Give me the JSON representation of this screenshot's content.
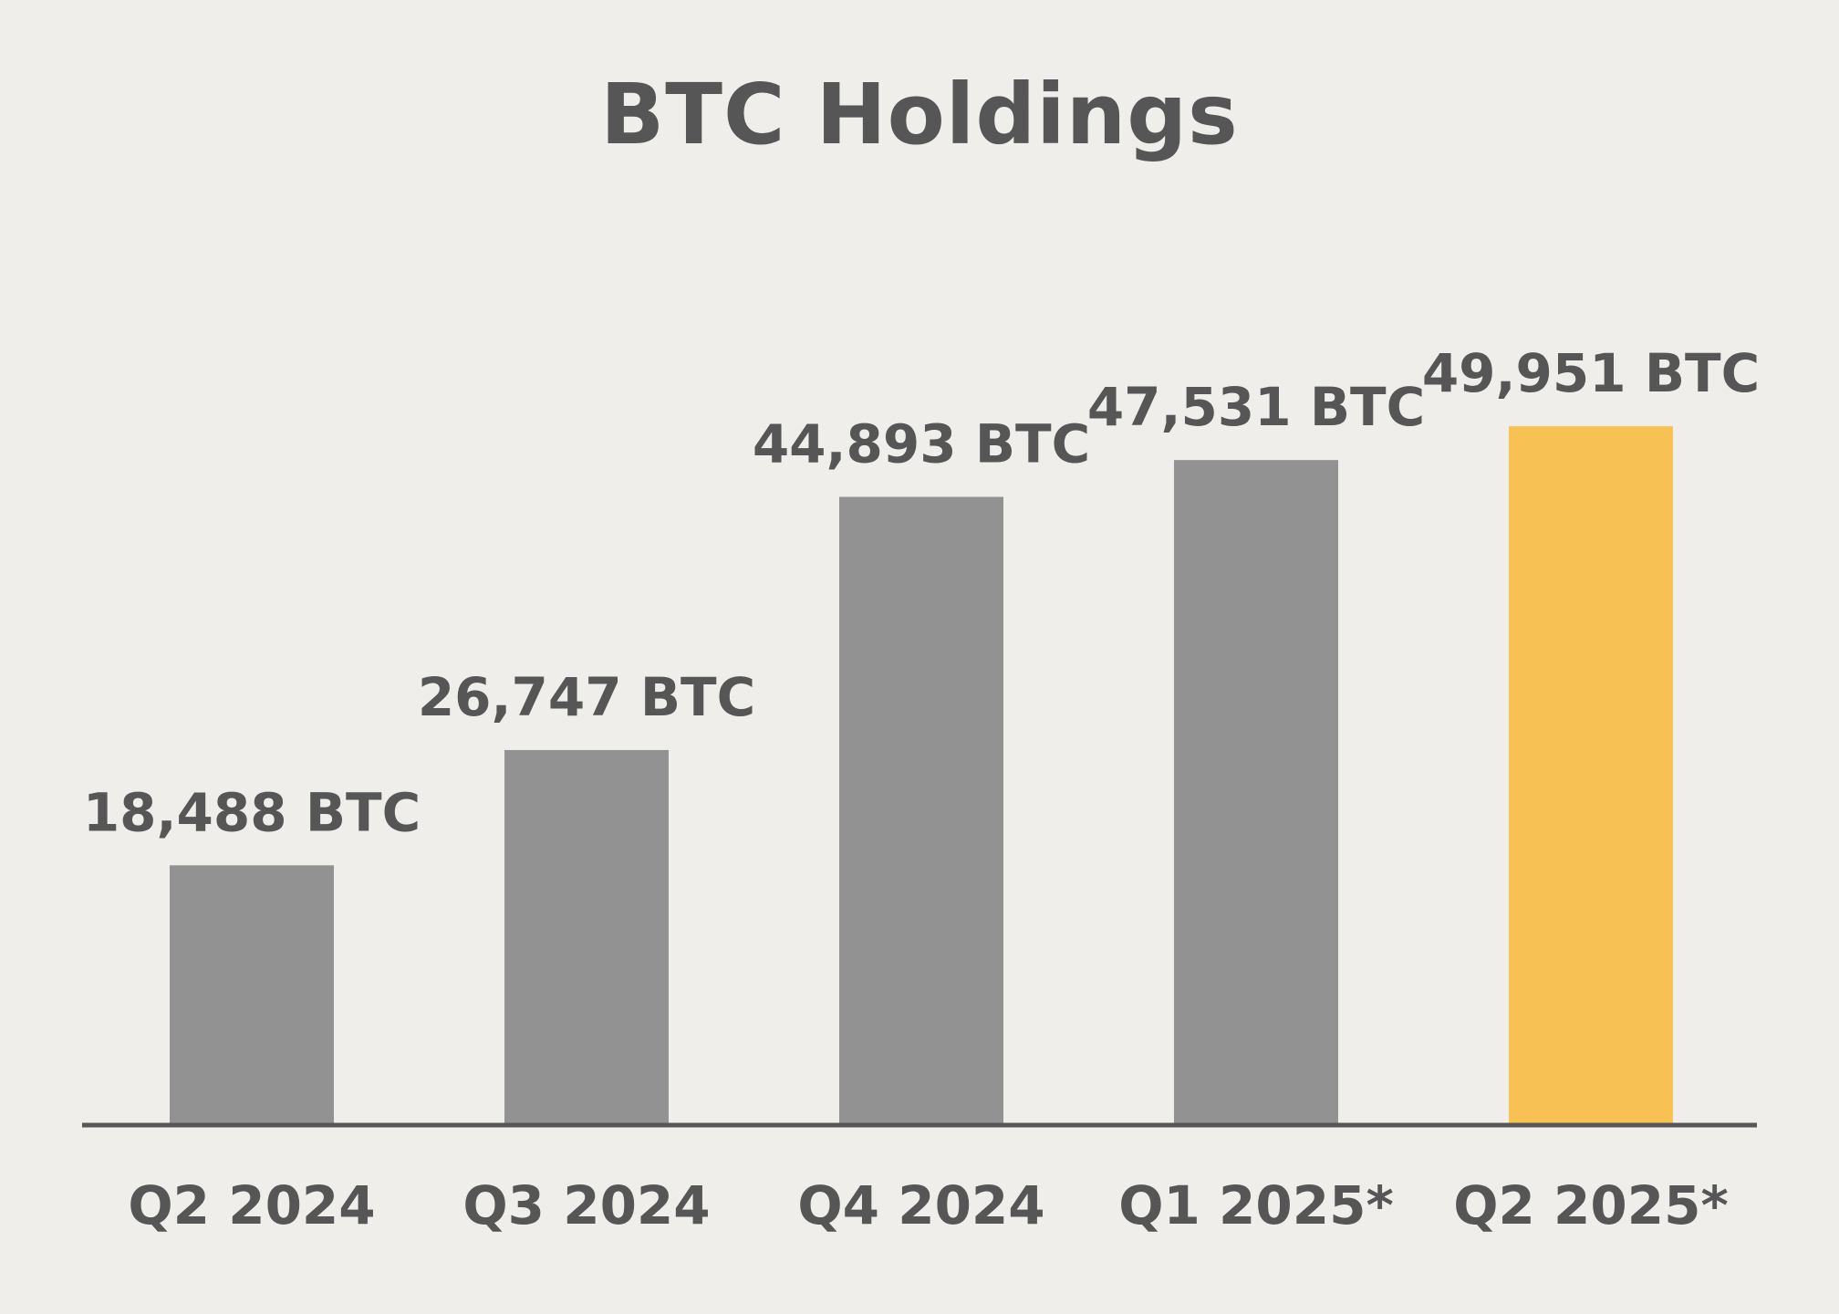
{
  "chart_data": {
    "type": "bar",
    "title": "BTC Holdings",
    "categories": [
      "Q2 2024",
      "Q3 2024",
      "Q4 2024",
      "Q1 2025*",
      "Q2 2025*"
    ],
    "values": [
      18488,
      26747,
      44893,
      47531,
      49951
    ],
    "value_labels": [
      "18,488 BTC",
      "26,747 BTC",
      "44,893 BTC",
      "47,531 BTC",
      "49,951 BTC"
    ],
    "xlabel": "",
    "ylabel": "",
    "ylim": [
      0,
      80500
    ],
    "grid": false,
    "legend": "none",
    "colors": {
      "default_bar": "#929292",
      "highlight_bar": "#f8c153",
      "axis": "#565656",
      "text": "#565656",
      "background": "#efeeea"
    },
    "highlight_index": 4
  }
}
